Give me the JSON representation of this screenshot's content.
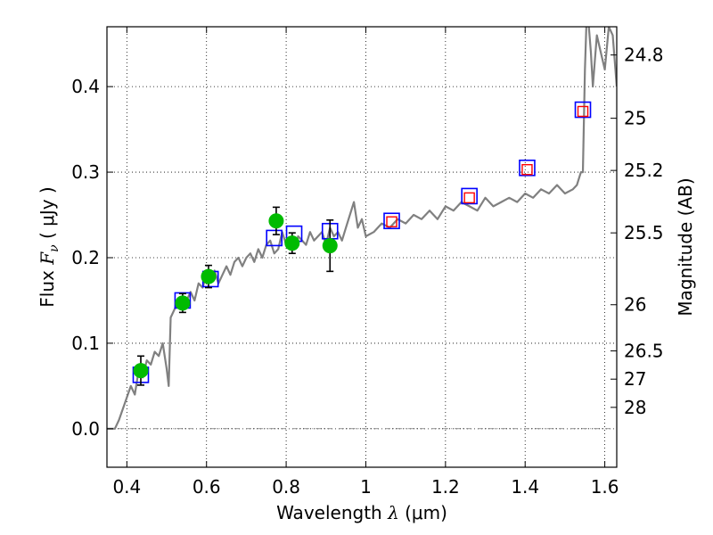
{
  "chart_data": {
    "type": "scatter",
    "title": "",
    "xlabel": "Wavelength  λ (μm)",
    "ylabel": "Flux  F_ν  ( μJy )",
    "ylabel_parts": {
      "prefix": "Flux  ",
      "symbol": "F",
      "subscript": "ν",
      "unit": "  ( μJy )"
    },
    "xlabel_parts": {
      "prefix": "Wavelength  ",
      "symbol": "λ",
      "unit": " (μm)"
    },
    "y2label": "Magnitude (AB)",
    "xlim": [
      0.35,
      1.63
    ],
    "ylim": [
      -0.045,
      0.47
    ],
    "grid": true,
    "x_ticks": [
      0.4,
      0.6,
      0.8,
      1.0,
      1.2,
      1.4,
      1.6
    ],
    "x_tick_labels": [
      "0.4",
      "0.6",
      "0.8",
      "1",
      "1.2",
      "1.4",
      "1.6"
    ],
    "y_ticks": [
      0.0,
      0.1,
      0.2,
      0.3,
      0.4
    ],
    "y_tick_labels": [
      "0.0",
      "0.1",
      "0.2",
      "0.3",
      "0.4"
    ],
    "y2_ticks": [
      {
        "label": "24.8",
        "flux": 0.437
      },
      {
        "label": "25",
        "flux": 0.363
      },
      {
        "label": "25.2",
        "flux": 0.302
      },
      {
        "label": "25.5",
        "flux": 0.229
      },
      {
        "label": "26",
        "flux": 0.145
      },
      {
        "label": "26.5",
        "flux": 0.091
      },
      {
        "label": "27",
        "flux": 0.058
      },
      {
        "label": "28",
        "flux": 0.025
      }
    ],
    "series": [
      {
        "name": "model spectrum",
        "kind": "line",
        "color": "#808080",
        "x": [
          0.35,
          0.37,
          0.38,
          0.395,
          0.41,
          0.42,
          0.43,
          0.44,
          0.45,
          0.46,
          0.47,
          0.48,
          0.49,
          0.5,
          0.505,
          0.51,
          0.52,
          0.53,
          0.54,
          0.55,
          0.56,
          0.57,
          0.58,
          0.59,
          0.6,
          0.61,
          0.62,
          0.63,
          0.64,
          0.65,
          0.66,
          0.67,
          0.68,
          0.69,
          0.7,
          0.71,
          0.72,
          0.73,
          0.74,
          0.75,
          0.76,
          0.77,
          0.78,
          0.79,
          0.8,
          0.81,
          0.82,
          0.83,
          0.84,
          0.85,
          0.86,
          0.87,
          0.88,
          0.89,
          0.9,
          0.91,
          0.92,
          0.93,
          0.94,
          0.95,
          0.96,
          0.97,
          0.98,
          0.99,
          1.0,
          1.02,
          1.04,
          1.06,
          1.08,
          1.1,
          1.12,
          1.14,
          1.16,
          1.18,
          1.2,
          1.22,
          1.24,
          1.26,
          1.28,
          1.3,
          1.32,
          1.34,
          1.36,
          1.38,
          1.4,
          1.42,
          1.44,
          1.46,
          1.48,
          1.5,
          1.52,
          1.53,
          1.54,
          1.545,
          1.55,
          1.555,
          1.56,
          1.565,
          1.57,
          1.575,
          1.58,
          1.59,
          1.6,
          1.61,
          1.62,
          1.63
        ],
        "y": [
          0.0,
          0.0,
          0.01,
          0.03,
          0.05,
          0.04,
          0.07,
          0.06,
          0.08,
          0.075,
          0.09,
          0.085,
          0.1,
          0.07,
          0.05,
          0.13,
          0.14,
          0.15,
          0.145,
          0.15,
          0.16,
          0.15,
          0.17,
          0.165,
          0.18,
          0.175,
          0.185,
          0.17,
          0.18,
          0.19,
          0.18,
          0.195,
          0.2,
          0.19,
          0.2,
          0.205,
          0.195,
          0.21,
          0.2,
          0.215,
          0.22,
          0.205,
          0.21,
          0.23,
          0.215,
          0.22,
          0.21,
          0.225,
          0.22,
          0.215,
          0.23,
          0.22,
          0.225,
          0.23,
          0.215,
          0.235,
          0.225,
          0.23,
          0.22,
          0.235,
          0.25,
          0.265,
          0.235,
          0.245,
          0.225,
          0.23,
          0.24,
          0.235,
          0.245,
          0.24,
          0.25,
          0.245,
          0.255,
          0.245,
          0.26,
          0.255,
          0.265,
          0.26,
          0.255,
          0.27,
          0.26,
          0.265,
          0.27,
          0.265,
          0.275,
          0.27,
          0.28,
          0.275,
          0.285,
          0.275,
          0.28,
          0.285,
          0.3,
          0.3,
          0.42,
          0.49,
          0.47,
          0.44,
          0.4,
          0.43,
          0.46,
          0.44,
          0.42,
          0.47,
          0.46,
          0.4
        ]
      },
      {
        "name": "photometry",
        "kind": "points_errorbars",
        "color": "#00bb00",
        "x": [
          0.435,
          0.54,
          0.605,
          0.775,
          0.815,
          0.91
        ],
        "y": [
          0.068,
          0.147,
          0.178,
          0.243,
          0.217,
          0.214
        ],
        "yerr": [
          0.017,
          0.011,
          0.013,
          0.016,
          0.012,
          0.03
        ]
      },
      {
        "name": "model photometry (blue)",
        "kind": "open_squares",
        "color": "#0000ff",
        "x": [
          0.435,
          0.54,
          0.61,
          0.77,
          0.82,
          0.91,
          1.065,
          1.26,
          1.405,
          1.545
        ],
        "y": [
          0.063,
          0.15,
          0.175,
          0.223,
          0.228,
          0.231,
          0.243,
          0.272,
          0.305,
          0.373
        ]
      },
      {
        "name": "model photometry (red)",
        "kind": "open_squares",
        "color": "#ff0000",
        "x": [
          1.065,
          1.26,
          1.405,
          1.545
        ],
        "y": [
          0.242,
          0.27,
          0.303,
          0.371
        ]
      }
    ]
  }
}
